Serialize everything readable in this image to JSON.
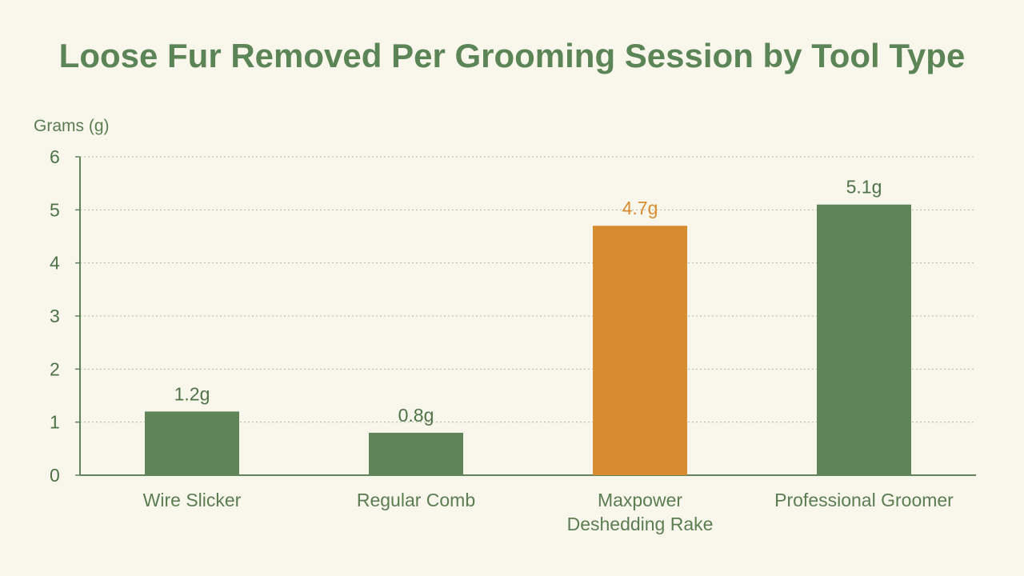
{
  "chart_data": {
    "type": "bar",
    "title": "Loose Fur Removed Per Grooming Session by Tool Type",
    "ylabel": "Grams (g)",
    "xlabel": "",
    "ylim": [
      0,
      6
    ],
    "yticks": [
      "0",
      "1",
      "2",
      "3",
      "4",
      "5",
      "6"
    ],
    "grid": true,
    "categories": [
      [
        "Wire Slicker"
      ],
      [
        "Regular Comb"
      ],
      [
        "Maxpower",
        "Deshedding Rake"
      ],
      [
        "Professional Groomer"
      ]
    ],
    "values": [
      1.2,
      0.8,
      4.7,
      5.1
    ],
    "data_labels": [
      "1.2g",
      "0.8g",
      "4.7g",
      "5.1g"
    ],
    "highlight_index": 2
  },
  "colors": {
    "bar": "#5f845a",
    "highlight": "#d98c2f",
    "title": "#5c8557",
    "axis": "#5f845a",
    "grid": "#a9b9a2",
    "text": "#4e7348",
    "background": "#f9f6ec"
  }
}
